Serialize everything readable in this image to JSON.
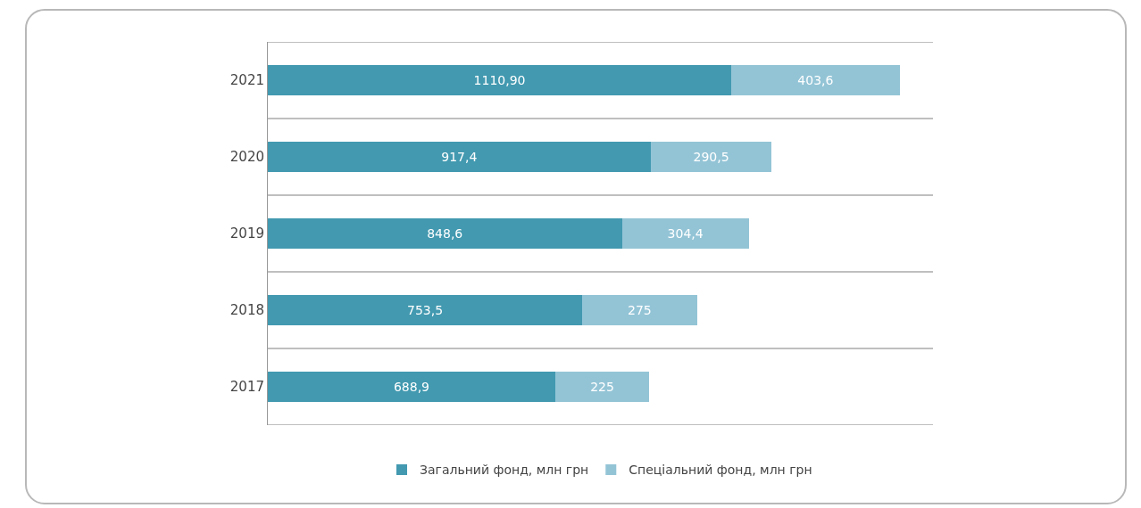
{
  "chart_data": {
    "type": "bar",
    "orientation": "horizontal",
    "stacked": true,
    "categories": [
      "2021",
      "2020",
      "2019",
      "2018",
      "2017"
    ],
    "series": [
      {
        "name": "Загальний фонд, млн грн",
        "color": "#4299b0",
        "values": [
          1110.9,
          917.4,
          848.6,
          753.5,
          688.9
        ],
        "value_labels": [
          "1110,90",
          "917,4",
          "848,6",
          "753,5",
          "688,9"
        ]
      },
      {
        "name": "Спеціальний фонд, млн грн",
        "color": "#93c4d6",
        "values": [
          403.6,
          290.5,
          304.4,
          275,
          225
        ],
        "value_labels": [
          "403,6",
          "290,5",
          "304,4",
          "275",
          "225"
        ]
      }
    ],
    "grid": "y",
    "legend": "bottom",
    "tick_labels": "y"
  }
}
